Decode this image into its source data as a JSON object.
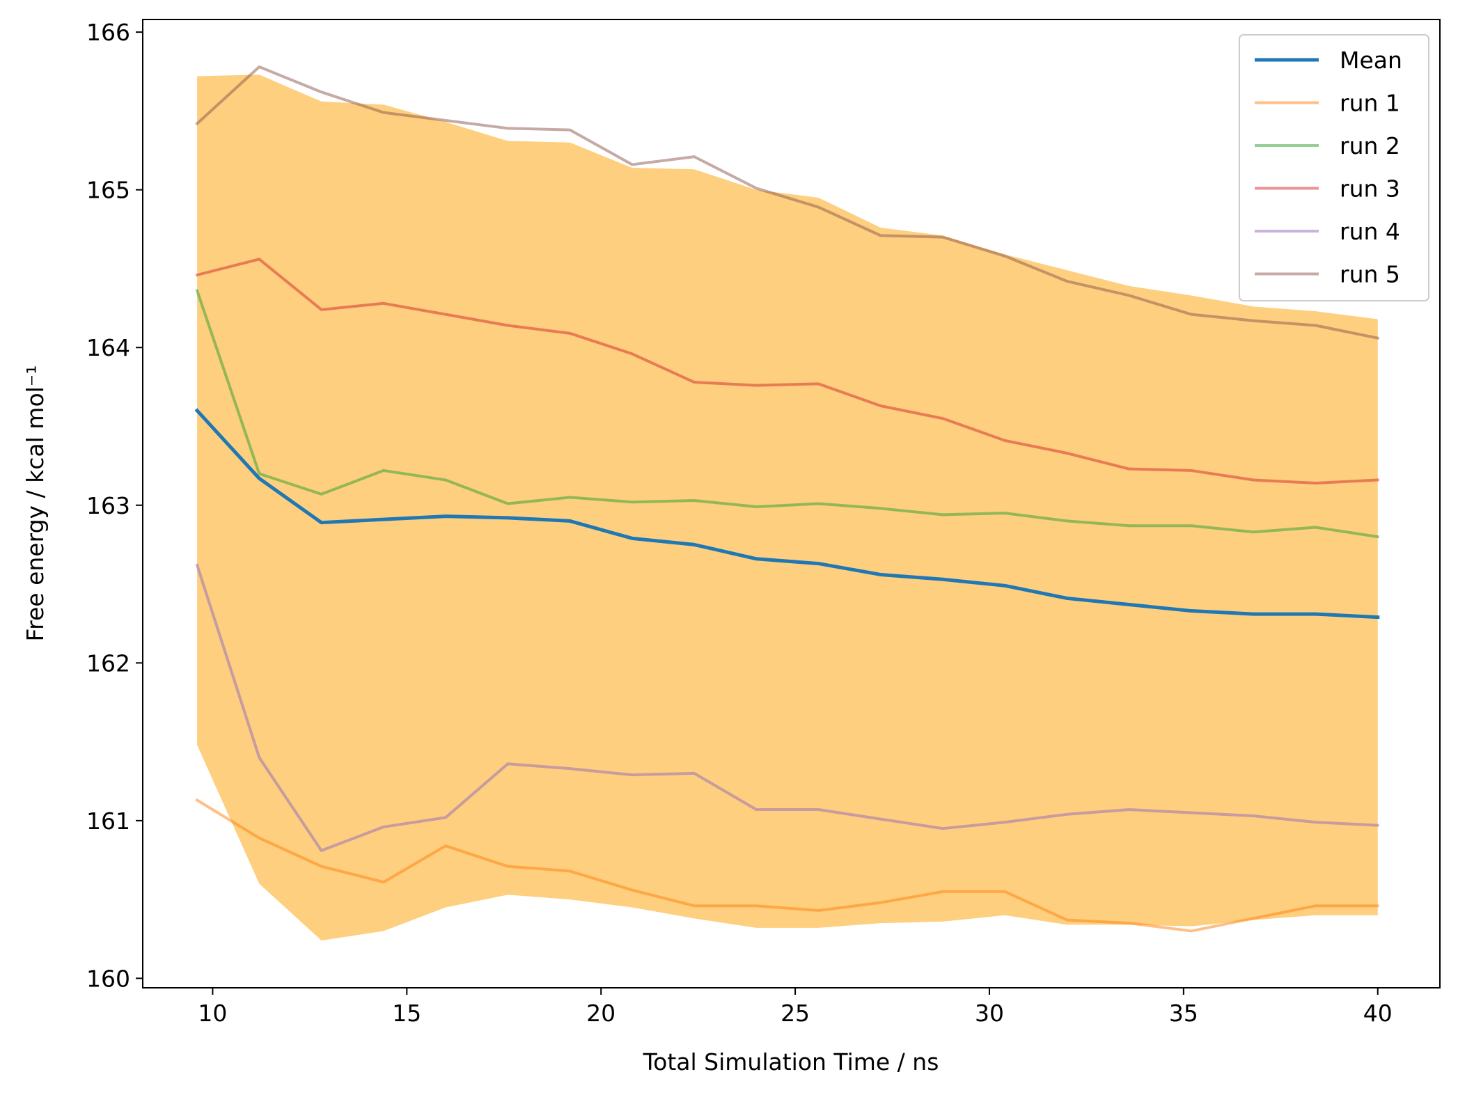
{
  "chart_data": {
    "type": "line",
    "xlabel": "Total Simulation Time / ns",
    "ylabel": "Free energy / kcal mol⁻¹",
    "xlim": [
      8.2,
      41.6
    ],
    "ylim": [
      159.94,
      166.08
    ],
    "xticks": [
      10,
      15,
      20,
      25,
      30,
      35,
      40
    ],
    "yticks": [
      160,
      161,
      162,
      163,
      164,
      165,
      166
    ],
    "grid": false,
    "legend_position": "top-right",
    "x": [
      9.6,
      11.2,
      12.8,
      14.4,
      16.0,
      17.6,
      19.2,
      20.8,
      22.4,
      24.0,
      25.6,
      27.2,
      28.8,
      30.4,
      32.0,
      33.6,
      35.2,
      36.8,
      38.4,
      40.0
    ],
    "band": {
      "color": "#fdcf7f",
      "upper": [
        165.72,
        165.73,
        165.56,
        165.54,
        165.43,
        165.31,
        165.3,
        165.14,
        165.13,
        165.0,
        164.95,
        164.76,
        164.71,
        164.59,
        164.49,
        164.39,
        164.33,
        164.26,
        164.23,
        164.18
      ],
      "lower": [
        161.48,
        160.6,
        160.24,
        160.3,
        160.45,
        160.53,
        160.5,
        160.45,
        160.38,
        160.32,
        160.32,
        160.35,
        160.36,
        160.4,
        160.34,
        160.34,
        160.33,
        160.37,
        160.4,
        160.4
      ]
    },
    "series": [
      {
        "name": "Mean",
        "color": "#1f77b4",
        "opacity": 1,
        "width": 5,
        "values": [
          163.6,
          163.17,
          162.89,
          162.91,
          162.93,
          162.92,
          162.9,
          162.79,
          162.75,
          162.66,
          162.63,
          162.56,
          162.53,
          162.49,
          162.41,
          162.37,
          162.33,
          162.31,
          162.31,
          162.29
        ]
      },
      {
        "name": "run 1",
        "color": "#ff7f0e",
        "opacity": 0.5,
        "width": 4,
        "values": [
          161.13,
          160.89,
          160.71,
          160.61,
          160.84,
          160.71,
          160.68,
          160.56,
          160.46,
          160.46,
          160.43,
          160.48,
          160.55,
          160.55,
          160.37,
          160.35,
          160.3,
          160.38,
          160.46,
          160.46
        ]
      },
      {
        "name": "run 2",
        "color": "#2ca02c",
        "opacity": 0.5,
        "width": 4,
        "values": [
          164.36,
          163.2,
          163.07,
          163.22,
          163.16,
          163.01,
          163.05,
          163.02,
          163.03,
          162.99,
          163.01,
          162.98,
          162.94,
          162.95,
          162.9,
          162.87,
          162.87,
          162.83,
          162.86,
          162.8
        ]
      },
      {
        "name": "run 3",
        "color": "#d62728",
        "opacity": 0.5,
        "width": 4,
        "values": [
          164.46,
          164.56,
          164.24,
          164.28,
          164.21,
          164.14,
          164.09,
          163.96,
          163.78,
          163.76,
          163.77,
          163.63,
          163.55,
          163.41,
          163.33,
          163.23,
          163.22,
          163.16,
          163.14,
          163.16
        ]
      },
      {
        "name": "run 4",
        "color": "#9467bd",
        "opacity": 0.5,
        "width": 4,
        "values": [
          162.62,
          161.4,
          160.81,
          160.96,
          161.02,
          161.36,
          161.33,
          161.29,
          161.3,
          161.07,
          161.07,
          161.01,
          160.95,
          160.99,
          161.04,
          161.07,
          161.05,
          161.03,
          160.99,
          160.97
        ]
      },
      {
        "name": "run 5",
        "color": "#8c564b",
        "opacity": 0.5,
        "width": 4,
        "values": [
          165.42,
          165.78,
          165.62,
          165.49,
          165.44,
          165.39,
          165.38,
          165.16,
          165.21,
          165.01,
          164.89,
          164.71,
          164.7,
          164.58,
          164.42,
          164.33,
          164.21,
          164.17,
          164.14,
          164.06
        ]
      }
    ]
  }
}
